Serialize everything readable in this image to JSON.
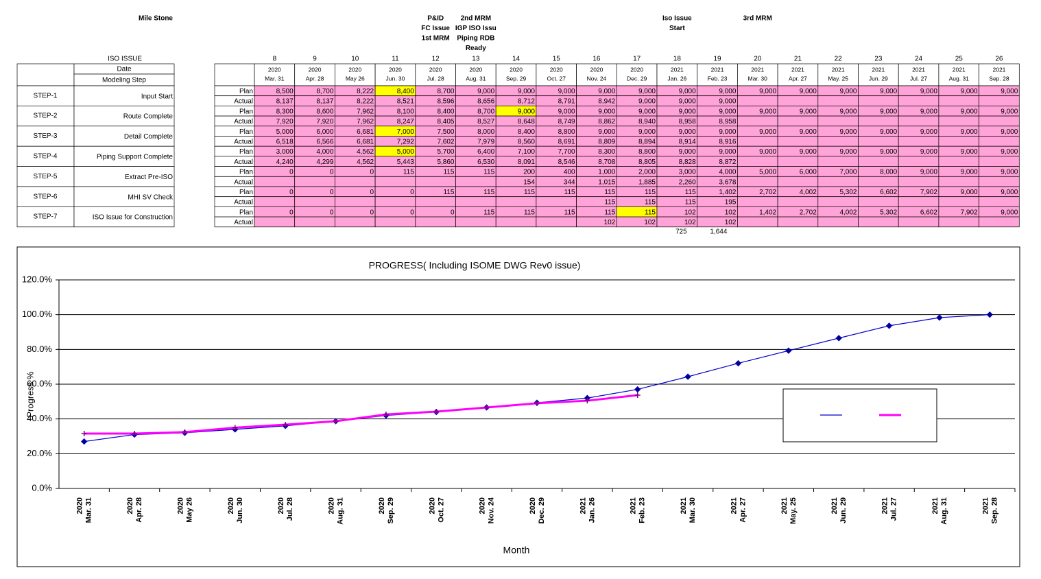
{
  "table": {
    "milestone_heading": "Mile Stone",
    "iso_issue_heading": "ISO ISSUE",
    "date_heading": "Date",
    "step_heading": "Modeling Step",
    "columns": [
      {
        "number": 8,
        "year": "2020",
        "date": "Mar. 31"
      },
      {
        "number": 9,
        "year": "2020",
        "date": "Apr. 28"
      },
      {
        "number": 10,
        "year": "2020",
        "date": "May 26"
      },
      {
        "number": 11,
        "year": "2020",
        "date": "Jun. 30"
      },
      {
        "number": 12,
        "year": "2020",
        "date": "Jul. 28"
      },
      {
        "number": 13,
        "year": "2020",
        "date": "Aug. 31"
      },
      {
        "number": 14,
        "year": "2020",
        "date": "Sep. 29"
      },
      {
        "number": 15,
        "year": "2020",
        "date": "Oct. 27"
      },
      {
        "number": 16,
        "year": "2020",
        "date": "Nov. 24"
      },
      {
        "number": 17,
        "year": "2020",
        "date": "Dec. 29"
      },
      {
        "number": 18,
        "year": "2021",
        "date": "Jan. 26"
      },
      {
        "number": 19,
        "year": "2021",
        "date": "Feb. 23"
      },
      {
        "number": 20,
        "year": "2021",
        "date": "Mar. 30"
      },
      {
        "number": 21,
        "year": "2021",
        "date": "Apr. 27"
      },
      {
        "number": 22,
        "year": "2021",
        "date": "May. 25"
      },
      {
        "number": 23,
        "year": "2021",
        "date": "Jun. 29"
      },
      {
        "number": 24,
        "year": "2021",
        "date": "Jul. 27"
      },
      {
        "number": 25,
        "year": "2021",
        "date": "Aug. 31"
      },
      {
        "number": 26,
        "year": "2021",
        "date": "Sep. 28"
      }
    ],
    "milestones": [
      null,
      null,
      null,
      null,
      [
        "P&ID",
        "FC Issue",
        "1st MRM"
      ],
      [
        "2nd MRM",
        "IGP ISO Issu",
        "Piping RDB",
        "Ready"
      ],
      null,
      null,
      null,
      null,
      [
        "Iso Issue",
        "Start"
      ],
      null,
      [
        "3rd MRM"
      ],
      null,
      null,
      null,
      null,
      null,
      null
    ],
    "milestone_colors": [
      null,
      null,
      null,
      null,
      "#000000",
      "#000000",
      null,
      null,
      null,
      null,
      "#ff0000",
      null,
      "#000000",
      null,
      null,
      null,
      null,
      null,
      null
    ],
    "plan_color": "#ff0000",
    "actual_color": "#000000",
    "cell_fill": "#ffa3d8",
    "highlight_fill": "#ffff00",
    "steps": [
      {
        "step": "STEP-1",
        "name": "Input Start",
        "plan_label": "Plan",
        "actual_label": "Actual",
        "plan": [
          "8,500",
          "8,700",
          "8,222",
          "8,400",
          "8,700",
          "9,000",
          "9,000",
          "9,000",
          "9,000",
          "9,000",
          "9,000",
          "9,000",
          "9,000",
          "9,000",
          "9,000",
          "9,000",
          "9,000",
          "9,000",
          "9,000"
        ],
        "actual": [
          "8,137",
          "8,137",
          "8,222",
          "8,521",
          "8,596",
          "8,656",
          "8,712",
          "8,791",
          "8,942",
          "9,000",
          "9,000",
          "9,000",
          null,
          null,
          null,
          null,
          null,
          null,
          null
        ],
        "plan_highlight": [
          3
        ]
      },
      {
        "step": "STEP-2",
        "name": "Route Complete",
        "plan_label": "Plan",
        "actual_label": "Actual",
        "plan": [
          "8,300",
          "8,600",
          "7,962",
          "8,100",
          "8,400",
          "8,700",
          "9,000",
          "9,000",
          "9,000",
          "9,000",
          "9,000",
          "9,000",
          "9,000",
          "9,000",
          "9,000",
          "9,000",
          "9,000",
          "9,000",
          "9,000"
        ],
        "actual": [
          "7,920",
          "7,920",
          "7,962",
          "8,247",
          "8,405",
          "8,527",
          "8,648",
          "8,749",
          "8,862",
          "8,940",
          "8,958",
          "8,958",
          null,
          null,
          null,
          null,
          null,
          null,
          null
        ],
        "plan_highlight": [
          6
        ]
      },
      {
        "step": "STEP-3",
        "name": "Detail Complete",
        "plan_label": "Plan",
        "actual_label": "Actual",
        "plan": [
          "5,000",
          "6,000",
          "6,681",
          "7,000",
          "7,500",
          "8,000",
          "8,400",
          "8,800",
          "9,000",
          "9,000",
          "9,000",
          "9,000",
          "9,000",
          "9,000",
          "9,000",
          "9,000",
          "9,000",
          "9,000",
          "9,000"
        ],
        "actual": [
          "6,518",
          "6,566",
          "6,681",
          "7,292",
          "7,602",
          "7,979",
          "8,560",
          "8,691",
          "8,809",
          "8,894",
          "8,914",
          "8,916",
          null,
          null,
          null,
          null,
          null,
          null,
          null
        ],
        "plan_highlight": [
          3
        ]
      },
      {
        "step": "STEP-4",
        "name": "Piping Support Complete",
        "plan_label": "Plan",
        "actual_label": "Actual",
        "plan": [
          "3,000",
          "4,000",
          "4,562",
          "5,000",
          "5,700",
          "6,400",
          "7,100",
          "7,700",
          "8,300",
          "8,800",
          "9,000",
          "9,000",
          "9,000",
          "9,000",
          "9,000",
          "9,000",
          "9,000",
          "9,000",
          "9,000"
        ],
        "actual": [
          "4,240",
          "4,299",
          "4,562",
          "5,443",
          "5,860",
          "6,530",
          "8,091",
          "8,546",
          "8,708",
          "8,805",
          "8,828",
          "8,872",
          null,
          null,
          null,
          null,
          null,
          null,
          null
        ],
        "plan_highlight": [
          3
        ]
      },
      {
        "step": "STEP-5",
        "name": "Extract Pre-ISO",
        "plan_label": "Plan",
        "actual_label": "Actual",
        "plan": [
          "0",
          "0",
          "0",
          "115",
          "115",
          "115",
          "200",
          "400",
          "1,000",
          "2,000",
          "3,000",
          "4,000",
          "5,000",
          "6,000",
          "7,000",
          "8,000",
          "9,000",
          "9,000",
          "9,000"
        ],
        "actual": [
          null,
          null,
          null,
          null,
          null,
          null,
          "154",
          "344",
          "1,015",
          "1,885",
          "2,260",
          "3,678",
          null,
          null,
          null,
          null,
          null,
          null,
          null
        ],
        "plan_highlight": []
      },
      {
        "step": "STEP-6",
        "name": "MHI SV Check",
        "plan_label": "Plan",
        "actual_label": "Actual",
        "plan": [
          "0",
          "0",
          "0",
          "0",
          "115",
          "115",
          "115",
          "115",
          "115",
          "115",
          "115",
          "1,402",
          "2,702",
          "4,002",
          "5,302",
          "6,602",
          "7,902",
          "9,000",
          "9,000"
        ],
        "actual": [
          null,
          null,
          null,
          null,
          null,
          null,
          null,
          null,
          "115",
          "115",
          "115",
          "195",
          null,
          null,
          null,
          null,
          null,
          null,
          null
        ],
        "plan_highlight": []
      },
      {
        "step": "STEP-7",
        "name": "ISO Issue for Construction",
        "plan_label": "Plan",
        "actual_label": "Actual",
        "plan": [
          "0",
          "0",
          "0",
          "0",
          "0",
          "115",
          "115",
          "115",
          "115",
          "115",
          "102",
          "102",
          "1,402",
          "2,702",
          "4,002",
          "5,302",
          "6,602",
          "7,902",
          "9,000"
        ],
        "actual": [
          null,
          null,
          null,
          null,
          null,
          null,
          null,
          null,
          "102",
          "102",
          "102",
          "102",
          null,
          null,
          null,
          null,
          null,
          null,
          null
        ],
        "plan_highlight": [
          9
        ]
      }
    ],
    "footer_values": [
      null,
      null,
      null,
      null,
      null,
      null,
      null,
      null,
      null,
      null,
      "725",
      "1,644",
      null,
      null,
      null,
      null,
      null,
      null,
      null
    ]
  },
  "chart_data": {
    "type": "line",
    "title": "PROGRESS( Including ISOME DWG Rev0 issue)",
    "y_label": "Progress %",
    "x_label": "Month",
    "categories": [
      "2020 Mar. 31",
      "2020 Apr. 28",
      "2020 May 26",
      "2020 Jun. 30",
      "2020 Jul. 28",
      "2020 Aug. 31",
      "2020 Sep. 29",
      "2020 Oct. 27",
      "2020 Nov. 24",
      "2020 Dec. 29",
      "2021 Jan. 26",
      "2021 Feb. 23",
      "2021 Mar. 30",
      "2021 Apr. 27",
      "2021 May. 25",
      "2021 Jun. 29",
      "2021 Jul. 27",
      "2021 Aug. 31",
      "2021 Sep. 28"
    ],
    "ylim": [
      0,
      120
    ],
    "yticks": [
      {
        "value": 0,
        "label": "0.0%"
      },
      {
        "value": 20,
        "label": "20.0%"
      },
      {
        "value": 40,
        "label": "40.0%"
      },
      {
        "value": 60,
        "label": "60.0%"
      },
      {
        "value": 80,
        "label": "80.0%"
      },
      {
        "value": 100,
        "label": "100.0%"
      },
      {
        "value": 120,
        "label": "120.0%"
      }
    ],
    "grid": true,
    "legend": "right",
    "series": [
      {
        "color": "#0000cc",
        "marker": "diamond",
        "values": [
          27,
          31,
          32,
          34,
          36,
          38.7,
          42,
          44,
          46.6,
          49.3,
          52,
          57,
          64.3,
          72,
          79.3,
          86.5,
          93.6,
          98.3,
          100
        ]
      },
      {
        "color": "#ff00ff",
        "marker": "plus",
        "values": [
          31.6,
          31.6,
          32.4,
          35,
          36.7,
          38.7,
          42.6,
          44.2,
          46.6,
          49,
          50.5,
          53.7,
          null,
          null,
          null,
          null,
          null,
          null,
          null
        ]
      }
    ]
  }
}
